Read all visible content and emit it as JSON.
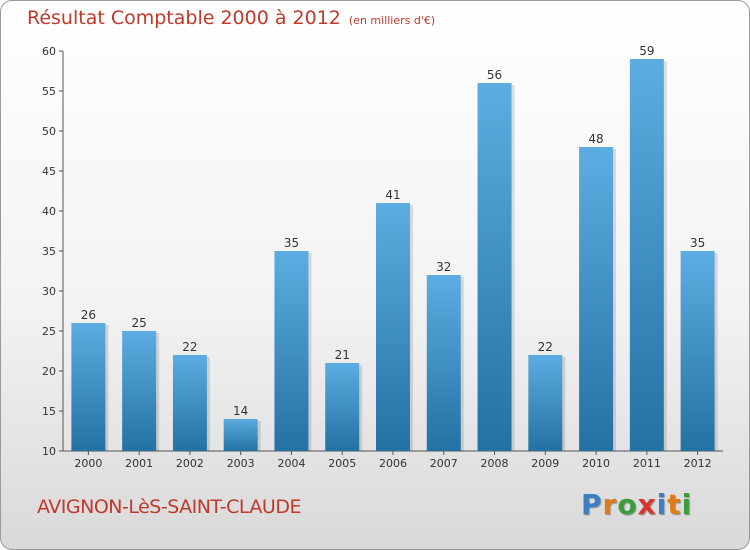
{
  "chart_data": {
    "type": "bar",
    "title": "Résultat Comptable 2000 à 2012",
    "subtitle": "(en milliers d'€)",
    "categories": [
      "2000",
      "2001",
      "2002",
      "2003",
      "2004",
      "2005",
      "2006",
      "2007",
      "2008",
      "2009",
      "2010",
      "2011",
      "2012"
    ],
    "values": [
      26,
      25,
      22,
      14,
      35,
      21,
      41,
      32,
      56,
      22,
      48,
      59,
      35
    ],
    "xlabel": "",
    "ylabel": "",
    "ylim": [
      10,
      60
    ],
    "yticks": [
      10,
      15,
      20,
      25,
      30,
      35,
      40,
      45,
      50,
      55,
      60
    ],
    "grid": false,
    "bar_color_top": "#5dade2",
    "bar_color_bottom": "#2471a3"
  },
  "footer": {
    "city": "AVIGNON-LèS-SAINT-CLAUDE",
    "logo_letters": [
      "P",
      "r",
      "o",
      "x",
      "i",
      "t",
      "i"
    ],
    "logo_colors": [
      "#3a7fc4",
      "#e07b1a",
      "#3a9e3a",
      "#d9362b",
      "#3a7fc4",
      "#e07b1a",
      "#3a9e3a"
    ]
  },
  "colors": {
    "title": "#c0392b",
    "axis": "#555555"
  }
}
